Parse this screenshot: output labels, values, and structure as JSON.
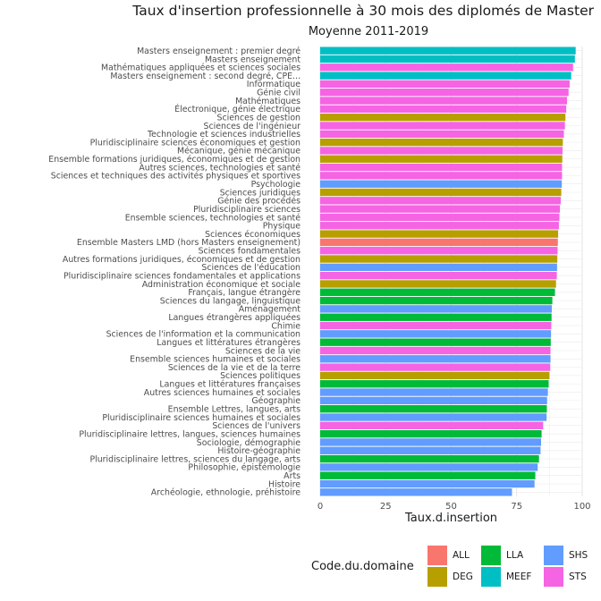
{
  "chart_data": {
    "type": "bar",
    "orientation": "horizontal",
    "title": "Taux d'insertion professionnelle à 30 mois des diplomés de Master",
    "subtitle": "Moyenne 2011-2019",
    "xlabel": "Taux.d.insertion",
    "ylabel": "",
    "xlim": [
      0,
      100
    ],
    "xticks": [
      "0",
      "25",
      "50",
      "75",
      "100"
    ],
    "grid": true,
    "legend_title": "Code.du.domaine",
    "legend_position": "bottom-right",
    "legend": [
      {
        "code": "ALL",
        "color": "#F8766D"
      },
      {
        "code": "DEG",
        "color": "#B79F00"
      },
      {
        "code": "LLA",
        "color": "#00BA38"
      },
      {
        "code": "MEEF",
        "color": "#00BFC4"
      },
      {
        "code": "SHS",
        "color": "#619CFF"
      },
      {
        "code": "STS",
        "color": "#F564E3"
      }
    ],
    "bars": [
      {
        "label": "Masters enseignement : premier degré",
        "value": 97.5,
        "domain": "MEEF"
      },
      {
        "label": "Masters enseignement",
        "value": 97.2,
        "domain": "MEEF"
      },
      {
        "label": "Mathématiques appliquées et sciences sociales",
        "value": 96.5,
        "domain": "STS"
      },
      {
        "label": "Masters enseignement : second degré, CPE...",
        "value": 95.8,
        "domain": "MEEF"
      },
      {
        "label": "Informatique",
        "value": 95.2,
        "domain": "STS"
      },
      {
        "label": "Génie civil",
        "value": 94.8,
        "domain": "STS"
      },
      {
        "label": "Mathématiques",
        "value": 94.2,
        "domain": "STS"
      },
      {
        "label": "Électronique, génie électrique",
        "value": 93.9,
        "domain": "STS"
      },
      {
        "label": "Sciences de gestion",
        "value": 93.6,
        "domain": "DEG"
      },
      {
        "label": "Sciences de l'ingénieur",
        "value": 93.4,
        "domain": "STS"
      },
      {
        "label": "Technologie et sciences industrielles",
        "value": 93.0,
        "domain": "STS"
      },
      {
        "label": "Pluridisciplinaire sciences économiques et gestion",
        "value": 92.6,
        "domain": "DEG"
      },
      {
        "label": "Mécanique, génie mécanique",
        "value": 92.5,
        "domain": "STS"
      },
      {
        "label": "Ensemble formations juridiques, économiques et de gestion",
        "value": 92.4,
        "domain": "DEG"
      },
      {
        "label": "Autres sciences, technologies et santé",
        "value": 92.3,
        "domain": "STS"
      },
      {
        "label": "Sciences et techniques des activités physiques et sportives",
        "value": 92.3,
        "domain": "STS"
      },
      {
        "label": "Psychologie",
        "value": 92.2,
        "domain": "SHS"
      },
      {
        "label": "Sciences juridiques",
        "value": 92.0,
        "domain": "DEG"
      },
      {
        "label": "Génie des procédés",
        "value": 91.8,
        "domain": "STS"
      },
      {
        "label": "Pluridisciplinaire sciences",
        "value": 91.5,
        "domain": "STS"
      },
      {
        "label": "Ensemble sciences, technologies et santé",
        "value": 91.3,
        "domain": "STS"
      },
      {
        "label": "Physique",
        "value": 91.1,
        "domain": "STS"
      },
      {
        "label": "Sciences économiques",
        "value": 90.8,
        "domain": "DEG"
      },
      {
        "label": "Ensemble Masters LMD (hors Masters enseignement)",
        "value": 90.7,
        "domain": "ALL"
      },
      {
        "label": "Sciences fondamentales",
        "value": 90.6,
        "domain": "STS"
      },
      {
        "label": "Autres formations juridiques, économiques et de gestion",
        "value": 90.5,
        "domain": "DEG"
      },
      {
        "label": "Sciences de l'éducation",
        "value": 90.4,
        "domain": "SHS"
      },
      {
        "label": "Pluridisciplinaire sciences fondamentales et applications",
        "value": 90.3,
        "domain": "STS"
      },
      {
        "label": "Administration économique et sociale",
        "value": 90.0,
        "domain": "DEG"
      },
      {
        "label": "Français, langue étrangère",
        "value": 89.6,
        "domain": "LLA"
      },
      {
        "label": "Sciences du langage, linguistique",
        "value": 88.6,
        "domain": "LLA"
      },
      {
        "label": "Aménagement",
        "value": 88.4,
        "domain": "SHS"
      },
      {
        "label": "Langues étrangères appliquées",
        "value": 88.3,
        "domain": "LLA"
      },
      {
        "label": "Chimie",
        "value": 88.2,
        "domain": "STS"
      },
      {
        "label": "Sciences de l'information et la communication",
        "value": 88.1,
        "domain": "SHS"
      },
      {
        "label": "Langues et littératures étrangères",
        "value": 88.0,
        "domain": "LLA"
      },
      {
        "label": "Sciences de la vie",
        "value": 87.9,
        "domain": "STS"
      },
      {
        "label": "Ensemble sciences humaines et sociales",
        "value": 87.9,
        "domain": "SHS"
      },
      {
        "label": "Sciences de la vie et de la terre",
        "value": 87.8,
        "domain": "STS"
      },
      {
        "label": "Sciences politiques",
        "value": 87.5,
        "domain": "DEG"
      },
      {
        "label": "Langues et littératures françaises",
        "value": 87.2,
        "domain": "LLA"
      },
      {
        "label": "Autres sciences humaines et sociales",
        "value": 86.9,
        "domain": "SHS"
      },
      {
        "label": "Géographie",
        "value": 86.6,
        "domain": "SHS"
      },
      {
        "label": "Ensemble Lettres, langues, arts",
        "value": 86.5,
        "domain": "LLA"
      },
      {
        "label": "Pluridisciplinaire sciences humaines et sociales",
        "value": 86.4,
        "domain": "SHS"
      },
      {
        "label": "Sciences de l'univers",
        "value": 85.1,
        "domain": "STS"
      },
      {
        "label": "Pluridisciplinaire lettres, langues, sciences humaines",
        "value": 84.5,
        "domain": "LLA"
      },
      {
        "label": "Sociologie, démographie",
        "value": 84.3,
        "domain": "SHS"
      },
      {
        "label": "Histoire-géographie",
        "value": 84.1,
        "domain": "SHS"
      },
      {
        "label": "Pluridisciplinaire lettres, sciences du langage, arts",
        "value": 83.5,
        "domain": "LLA"
      },
      {
        "label": "Philosophie, épistémologie",
        "value": 83.0,
        "domain": "SHS"
      },
      {
        "label": "Arts",
        "value": 82.1,
        "domain": "LLA"
      },
      {
        "label": "Histoire",
        "value": 81.8,
        "domain": "SHS"
      },
      {
        "label": "Archéologie, ethnologie, préhistoire",
        "value": 73.2,
        "domain": "SHS"
      }
    ]
  }
}
